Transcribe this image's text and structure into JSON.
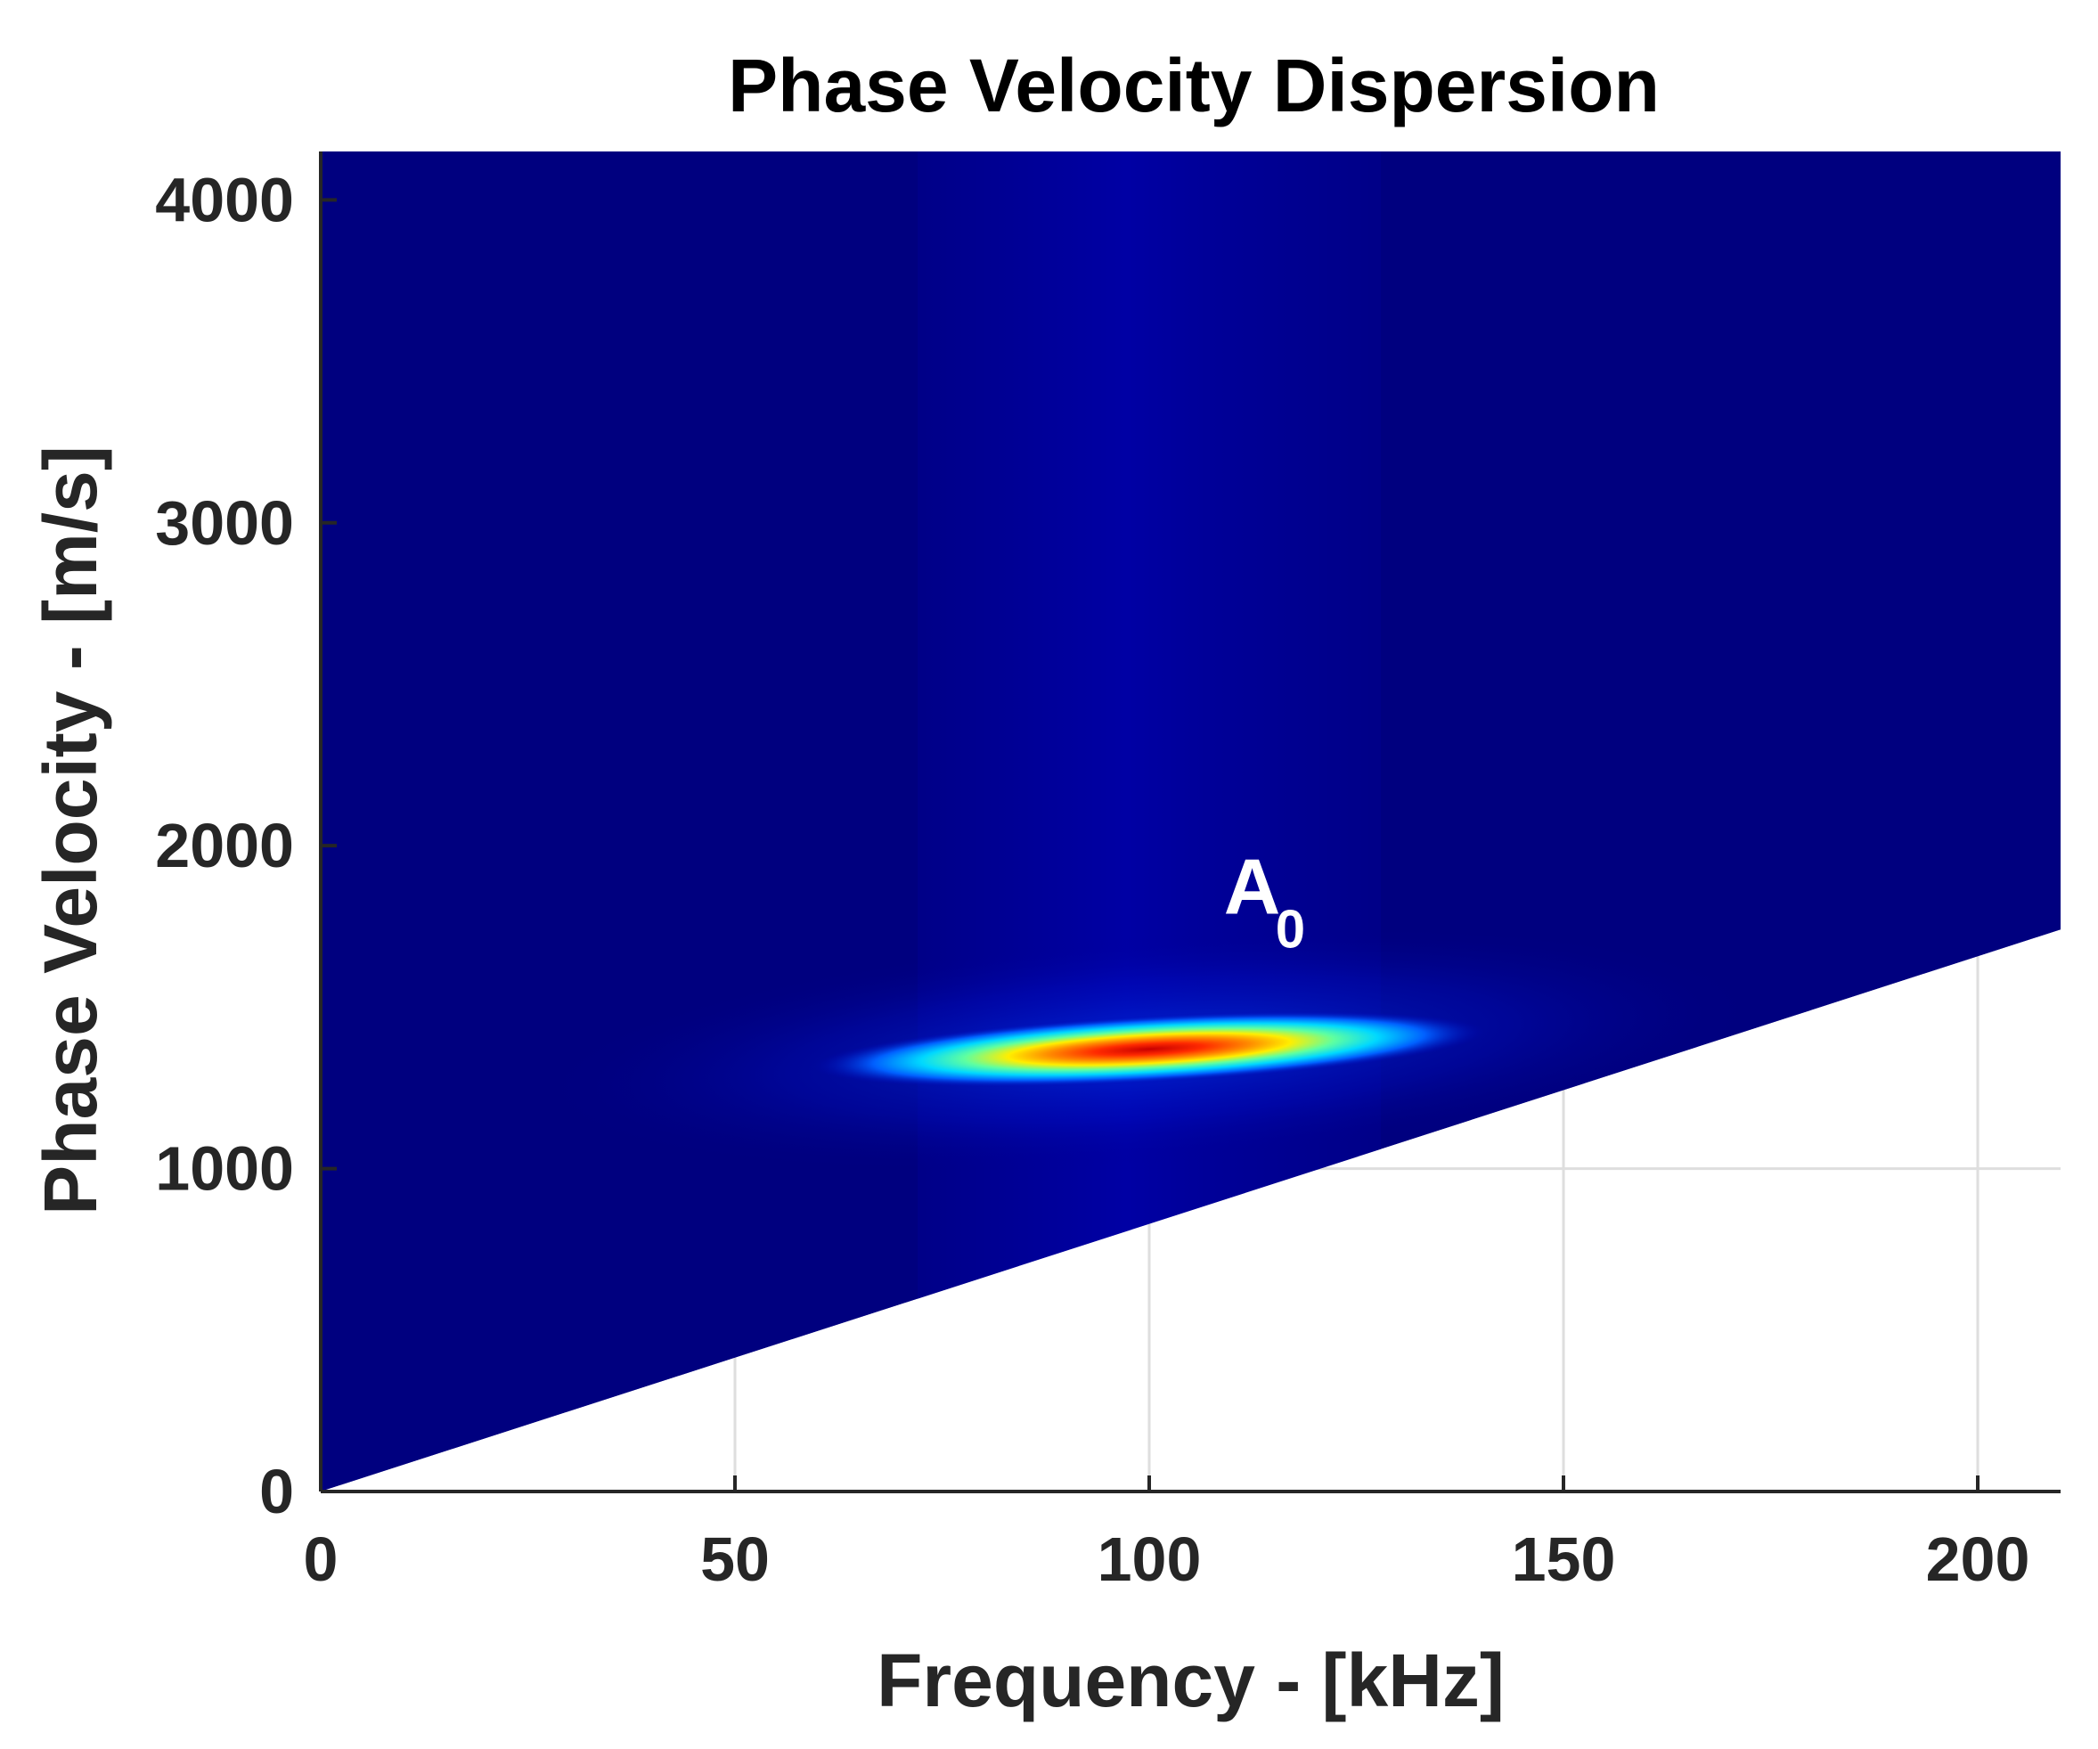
{
  "chart_data": {
    "type": "heatmap",
    "title": "Phase Velocity Dispersion",
    "xlabel": "Frequency - [kHz]",
    "ylabel": "Phase Velocity - [m/s]",
    "xlim": [
      0,
      210
    ],
    "ylim": [
      0,
      4150
    ],
    "xticks": [
      0,
      50,
      100,
      150,
      200
    ],
    "xtick_labels": [
      "0",
      "50",
      "100",
      "150",
      "200"
    ],
    "yticks": [
      0,
      1000,
      2000,
      3000,
      4000
    ],
    "ytick_labels": [
      "0",
      "1000",
      "2000",
      "3000",
      "4000"
    ],
    "grid": true,
    "colormap": "jet",
    "background_value_color": "#00007f",
    "data_region": {
      "description_boundary": "lower cutoff line through origin",
      "cutoff_line": {
        "x": [
          0,
          210
        ],
        "y": [
          0,
          1740
        ]
      }
    },
    "peaks": [
      {
        "label": "A0",
        "frequency_khz": 100,
        "velocity_ms": 1370,
        "freq_spread_khz": 28,
        "vel_spread_ms": 110,
        "intensity": 1.0
      }
    ],
    "annotations": [
      {
        "text": "A",
        "subscript": "0",
        "x": 109,
        "y": 1790
      }
    ],
    "colors": {
      "grid": "#dedede",
      "axis": "#262626"
    }
  }
}
